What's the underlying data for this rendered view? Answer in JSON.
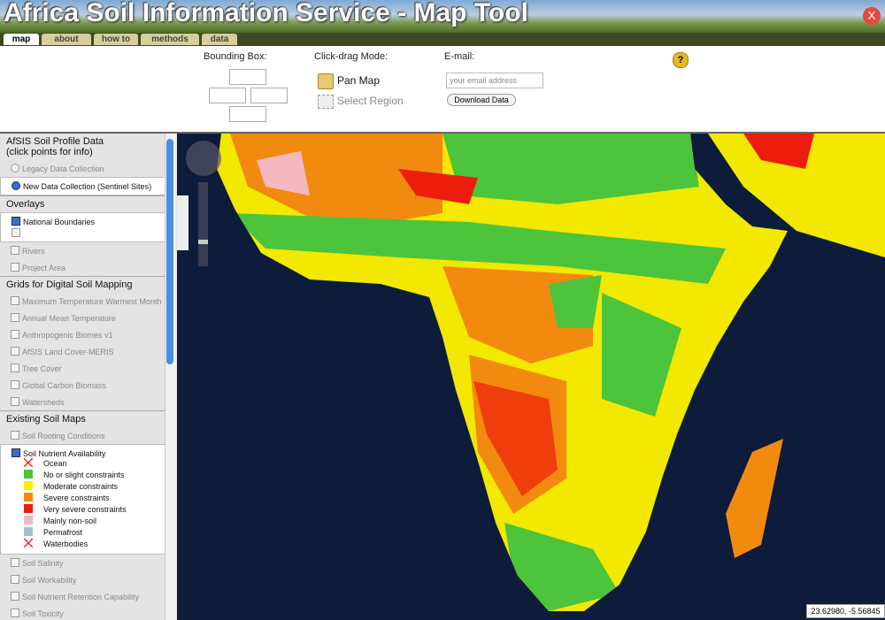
{
  "header": {
    "title": "Africa Soil Information Service - Map Tool",
    "close": "X"
  },
  "tabs": [
    {
      "label": "map",
      "active": true
    },
    {
      "label": "about",
      "active": false
    },
    {
      "label": "how to",
      "active": false
    },
    {
      "label": "methods",
      "active": false
    },
    {
      "label": "data",
      "active": false
    }
  ],
  "toolbar": {
    "bounding_box": "Bounding Box:",
    "click_drag_mode": "Click-drag Mode:",
    "pan_map": "Pan Map",
    "select_region": "Select Region",
    "email_label": "E-mail:",
    "email_placeholder": "your email address",
    "download": "Download Data",
    "help": "?"
  },
  "sidebar": {
    "profile": {
      "title": "AfSIS Soil Profile Data",
      "subtitle": "(click points for info)",
      "options": [
        {
          "label": "Legacy Data Collection",
          "checked": false
        },
        {
          "label": "New Data Collection (Sentinel Sites)",
          "checked": true
        }
      ]
    },
    "groups": [
      {
        "title": "Overlays",
        "items": [
          {
            "label": "National Boundaries",
            "checked": true
          },
          {
            "label": "Rivers",
            "checked": false
          },
          {
            "label": "Project Area",
            "checked": false
          }
        ]
      },
      {
        "title": "Grids for Digital Soil Mapping",
        "items": [
          {
            "label": "Maximum Temperature Warmest Month",
            "checked": false
          },
          {
            "label": "Annual Mean Temperature",
            "checked": false
          },
          {
            "label": "Anthropogenic Biomes v1",
            "checked": false
          },
          {
            "label": "AfSIS Land Cover-MERIS",
            "checked": false
          },
          {
            "label": "Tree Cover",
            "checked": false
          },
          {
            "label": "Global Carbon Biomass",
            "checked": false
          },
          {
            "label": "Watersheds",
            "checked": false
          }
        ]
      },
      {
        "title": "Existing Soil Maps",
        "items": [
          {
            "label": "Soil Rooting Conditions",
            "checked": false
          },
          {
            "label": "Soil Nutrient Availability",
            "checked": true,
            "legend": [
              {
                "label": "Ocean",
                "symbol": "cross"
              },
              {
                "label": "No or slight constraints",
                "color": "#4cc43c"
              },
              {
                "label": "Moderate constraints",
                "color": "#f2f200"
              },
              {
                "label": "Severe constraints",
                "color": "#f28a10"
              },
              {
                "label": "Very severe constraints",
                "color": "#ee1c0c"
              },
              {
                "label": "Mainly non-soil",
                "color": "#f4b8c0"
              },
              {
                "label": "Permafrost",
                "color": "#a0c0d0"
              },
              {
                "label": "Waterbodies",
                "symbol": "cross"
              }
            ]
          },
          {
            "label": "Soil Salinity",
            "checked": false
          },
          {
            "label": "Soil Workability",
            "checked": false
          },
          {
            "label": "Soil Nutrient Retention Capability",
            "checked": false
          },
          {
            "label": "Soil Toxicity",
            "checked": false
          }
        ]
      }
    ]
  },
  "map": {
    "coordinates": "23.62980, -5.56845"
  }
}
